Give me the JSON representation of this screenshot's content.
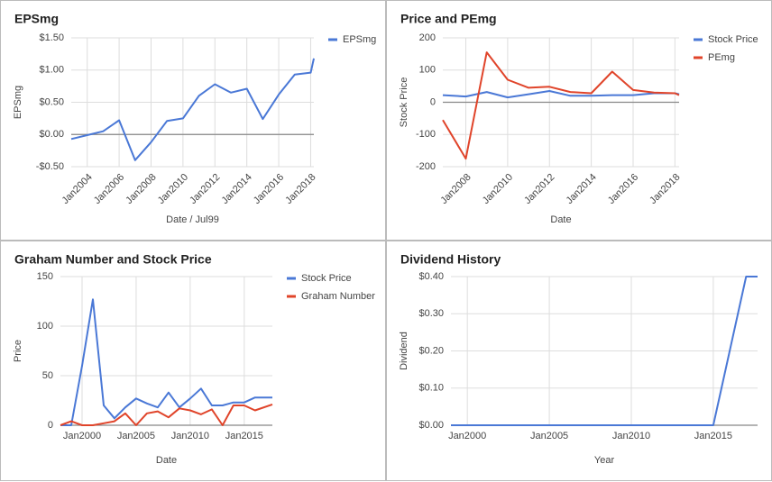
{
  "chart_data": [
    {
      "type": "line",
      "title": "EPSmg",
      "xlabel": "Date / Jul99",
      "ylabel": "EPSmg",
      "grid": true,
      "legend": "right",
      "x": [
        2003,
        2004,
        2005,
        2006,
        2007,
        2008,
        2009,
        2010,
        2011,
        2012,
        2013,
        2014,
        2015,
        2016,
        2017,
        2018,
        2018.2
      ],
      "series": [
        {
          "name": "EPSmg",
          "color": "#4a78d6",
          "values": [
            -0.07,
            -0.01,
            0.05,
            0.22,
            -0.4,
            -0.12,
            0.21,
            0.25,
            0.6,
            0.78,
            0.65,
            0.71,
            0.24,
            0.62,
            0.93,
            0.96,
            1.18
          ]
        }
      ],
      "xlim": [
        2003,
        2018.2
      ],
      "ylim": [
        -0.5,
        1.5
      ],
      "xticks": [
        {
          "value": 2004,
          "label": "Jan2004"
        },
        {
          "value": 2006,
          "label": "Jan2006"
        },
        {
          "value": 2008,
          "label": "Jan2008"
        },
        {
          "value": 2010,
          "label": "Jan2010"
        },
        {
          "value": 2012,
          "label": "Jan2012"
        },
        {
          "value": 2014,
          "label": "Jan2014"
        },
        {
          "value": 2016,
          "label": "Jan2016"
        },
        {
          "value": 2018,
          "label": "Jan2018"
        }
      ],
      "yticks": [
        {
          "value": -0.5,
          "label": "-$0.50"
        },
        {
          "value": 0,
          "label": "$0.00"
        },
        {
          "value": 0.5,
          "label": "$0.50"
        },
        {
          "value": 1,
          "label": "$1.00"
        },
        {
          "value": 1.5,
          "label": "$1.50"
        }
      ]
    },
    {
      "type": "line",
      "title": "Price and PEmg",
      "xlabel": "Date",
      "ylabel": "Stock Price",
      "grid": true,
      "legend": "right",
      "x": [
        2006.9,
        2008,
        2009,
        2010,
        2011,
        2012,
        2013,
        2014,
        2015,
        2016,
        2017,
        2018,
        2018.2
      ],
      "series": [
        {
          "name": "Stock Price",
          "color": "#4a78d6",
          "values": [
            22,
            18,
            32,
            15,
            25,
            35,
            20,
            20,
            22,
            22,
            28,
            28,
            25
          ]
        },
        {
          "name": "PEmg",
          "color": "#e0442a",
          "values": [
            -55,
            -175,
            155,
            70,
            45,
            48,
            32,
            28,
            95,
            38,
            30,
            28,
            22
          ]
        }
      ],
      "xlim": [
        2006.9,
        2018.2
      ],
      "ylim": [
        -200,
        200
      ],
      "xticks": [
        {
          "value": 2008,
          "label": "Jan2008"
        },
        {
          "value": 2010,
          "label": "Jan2010"
        },
        {
          "value": 2012,
          "label": "Jan2012"
        },
        {
          "value": 2014,
          "label": "Jan2014"
        },
        {
          "value": 2016,
          "label": "Jan2016"
        },
        {
          "value": 2018,
          "label": "Jan2018"
        }
      ],
      "yticks": [
        -200,
        -100,
        0,
        100,
        200
      ]
    },
    {
      "type": "line",
      "title": "Graham Number and Stock Price",
      "xlabel": "Date",
      "ylabel": "Price",
      "grid": true,
      "legend": "right",
      "x": [
        1998,
        1999,
        2000,
        2001,
        2002,
        2003,
        2004,
        2005,
        2006,
        2007,
        2008,
        2009,
        2010,
        2011,
        2012,
        2013,
        2014,
        2015,
        2016,
        2017.6
      ],
      "series": [
        {
          "name": "Stock Price",
          "color": "#4a78d6",
          "values": [
            0,
            0,
            60,
            127,
            20,
            7,
            18,
            27,
            22,
            18,
            33,
            18,
            27,
            37,
            20,
            20,
            23,
            23,
            28,
            28
          ]
        },
        {
          "name": "Graham Number",
          "color": "#e0442a",
          "values": [
            0,
            4,
            0,
            0,
            2,
            4,
            12,
            0,
            12,
            14,
            8,
            17,
            15,
            11,
            16,
            0,
            20,
            20,
            15,
            21
          ]
        }
      ],
      "xlim": [
        1998,
        2017.6
      ],
      "ylim": [
        0,
        150
      ],
      "xticks": [
        {
          "value": 2000,
          "label": "Jan2000"
        },
        {
          "value": 2005,
          "label": "Jan2005"
        },
        {
          "value": 2010,
          "label": "Jan2010"
        },
        {
          "value": 2015,
          "label": "Jan2015"
        }
      ],
      "yticks": [
        0,
        50,
        100,
        150
      ]
    },
    {
      "type": "line",
      "title": "Dividend History",
      "xlabel": "Year",
      "ylabel": "Dividend",
      "grid": true,
      "x": [
        1999,
        2015,
        2017,
        2017.7
      ],
      "series": [
        {
          "color": "#4a78d6",
          "values": [
            0,
            0,
            0.4,
            0.4
          ]
        }
      ],
      "xlim": [
        1999,
        2017.7
      ],
      "ylim": [
        0,
        0.4
      ],
      "xticks": [
        {
          "value": 2000,
          "label": "Jan2000"
        },
        {
          "value": 2005,
          "label": "Jan2005"
        },
        {
          "value": 2010,
          "label": "Jan2010"
        },
        {
          "value": 2015,
          "label": "Jan2015"
        }
      ],
      "yticks": [
        {
          "value": 0,
          "label": "$0.00"
        },
        {
          "value": 0.1,
          "label": "$0.10"
        },
        {
          "value": 0.2,
          "label": "$0.20"
        },
        {
          "value": 0.3,
          "label": "$0.30"
        },
        {
          "value": 0.4,
          "label": "$0.40"
        }
      ]
    }
  ]
}
